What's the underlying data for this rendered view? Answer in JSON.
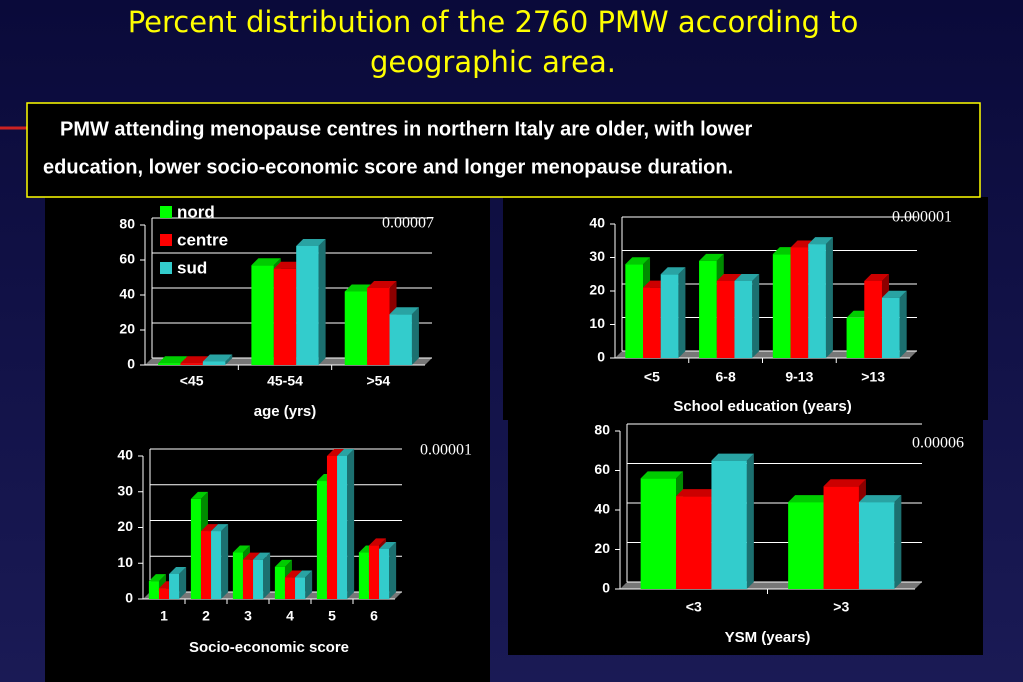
{
  "title": "Percent distribution of the 2760 PMW according to geographic area.",
  "highlight": [
    "PMW  attending menopause centres in northern Italy  are older, with lower",
    "education, lower socio-economic score and longer menopause duration."
  ],
  "chart_data": [
    {
      "type": "bar",
      "xlabel": "age (yrs)",
      "annotation": "0.00007",
      "legend": "top-left",
      "categories": [
        "<45",
        "45-54",
        ">54"
      ],
      "series": [
        {
          "name": "nord",
          "color": "#00ff00",
          "values": [
            1,
            57,
            42
          ]
        },
        {
          "name": "centre",
          "color": "#ff0000",
          "values": [
            1,
            55,
            44
          ]
        },
        {
          "name": "sud",
          "color": "#33cccc",
          "values": [
            2,
            68,
            29
          ]
        }
      ],
      "ylim": [
        0,
        80
      ],
      "yticks": [
        0,
        20,
        40,
        60,
        80
      ],
      "grid": true
    },
    {
      "type": "bar",
      "xlabel": "School education (years)",
      "annotation": "0.000001",
      "categories": [
        "<5",
        "6-8",
        "9-13",
        ">13"
      ],
      "series": [
        {
          "color": "#00ff00",
          "values": [
            28,
            29,
            31,
            12
          ]
        },
        {
          "color": "#ff0000",
          "values": [
            21,
            23,
            33,
            23
          ]
        },
        {
          "color": "#33cccc",
          "values": [
            25,
            23,
            34,
            18
          ]
        }
      ],
      "ylim": [
        0,
        40
      ],
      "yticks": [
        0,
        10,
        20,
        30,
        40
      ],
      "grid": true
    },
    {
      "type": "bar",
      "xlabel": "Socio-economic score",
      "annotation": "0.00001",
      "categories": [
        "1",
        "2",
        "3",
        "4",
        "5",
        "6"
      ],
      "series": [
        {
          "color": "#00ff00",
          "values": [
            5,
            28,
            13,
            9,
            33,
            13
          ]
        },
        {
          "color": "#ff0000",
          "values": [
            3,
            19,
            11,
            6,
            40,
            15
          ]
        },
        {
          "color": "#33cccc",
          "values": [
            7,
            19,
            11,
            6,
            40,
            14
          ]
        }
      ],
      "ylim": [
        0,
        40
      ],
      "yticks": [
        0,
        10,
        20,
        30,
        40
      ],
      "grid": true
    },
    {
      "type": "bar",
      "xlabel": "YSM (years)",
      "annotation": "0.00006",
      "categories": [
        "<3",
        ">3"
      ],
      "series": [
        {
          "color": "#00ff00",
          "values": [
            56,
            44
          ]
        },
        {
          "color": "#ff0000",
          "values": [
            47,
            52
          ]
        },
        {
          "color": "#33cccc",
          "values": [
            65,
            44
          ]
        }
      ],
      "ylim": [
        0,
        80
      ],
      "yticks": [
        0,
        20,
        40,
        60,
        80
      ],
      "grid": true
    }
  ]
}
